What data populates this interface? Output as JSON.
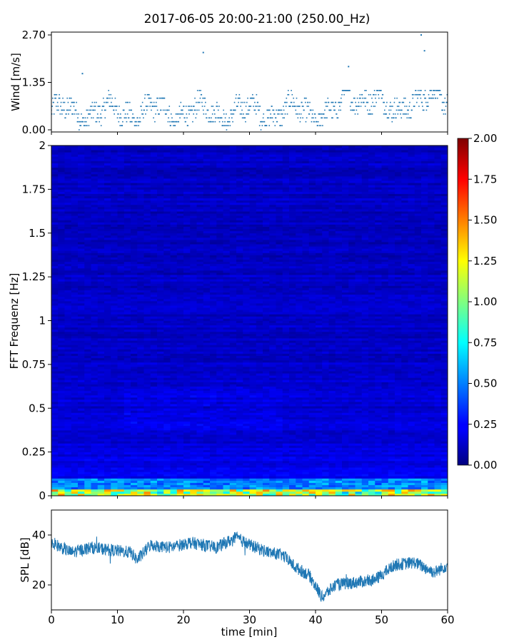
{
  "chart_data": [
    {
      "type": "scatter",
      "title": "2017-06-05 20:00-21:00 (250.00_Hz)",
      "ylabel": "Wind [m/s]",
      "xlim": [
        0,
        60
      ],
      "ylim": [
        0,
        2.7
      ],
      "yticks": [
        "0.00",
        "1.35",
        "2.70"
      ],
      "color": "#1f77b4",
      "peaks": [
        {
          "x": 4.7,
          "y": 1.6
        },
        {
          "x": 23.0,
          "y": 2.2
        },
        {
          "x": 45.0,
          "y": 1.8
        },
        {
          "x": 56.0,
          "y": 2.7
        },
        {
          "x": 56.5,
          "y": 2.25
        }
      ]
    },
    {
      "type": "heatmap",
      "ylabel": "FFT Frequenz [Hz]",
      "xlim": [
        0,
        60
      ],
      "ylim": [
        0,
        2
      ],
      "yticks": [
        "0",
        "0.25",
        "0.5",
        "0.75",
        "1",
        "1.25",
        "1.5",
        "1.75",
        "2"
      ],
      "colorbar": {
        "min": 0,
        "max": 2,
        "colormap": "jet",
        "ticks": [
          "0.00",
          "0.25",
          "0.50",
          "0.75",
          "1.00",
          "1.25",
          "1.50",
          "1.75",
          "2.00"
        ]
      }
    },
    {
      "type": "line",
      "xlabel": "time [min]",
      "ylabel": "SPL [dB]",
      "xlim": [
        0,
        60
      ],
      "ylim": [
        10,
        50
      ],
      "xticks": [
        "0",
        "10",
        "20",
        "30",
        "40",
        "50",
        "60"
      ],
      "yticks": [
        "20",
        "40"
      ],
      "color": "#1f77b4",
      "trend": [
        {
          "x": 0,
          "y": 37
        },
        {
          "x": 3,
          "y": 33
        },
        {
          "x": 6,
          "y": 35
        },
        {
          "x": 9,
          "y": 34
        },
        {
          "x": 12,
          "y": 33
        },
        {
          "x": 13,
          "y": 30
        },
        {
          "x": 15,
          "y": 36
        },
        {
          "x": 18,
          "y": 35
        },
        {
          "x": 21,
          "y": 37
        },
        {
          "x": 25,
          "y": 35
        },
        {
          "x": 28,
          "y": 39
        },
        {
          "x": 30,
          "y": 36
        },
        {
          "x": 33,
          "y": 33
        },
        {
          "x": 35,
          "y": 32
        },
        {
          "x": 37,
          "y": 27
        },
        {
          "x": 39,
          "y": 24
        },
        {
          "x": 41,
          "y": 15
        },
        {
          "x": 43,
          "y": 20
        },
        {
          "x": 46,
          "y": 21
        },
        {
          "x": 49,
          "y": 22
        },
        {
          "x": 52,
          "y": 28
        },
        {
          "x": 55,
          "y": 29
        },
        {
          "x": 58,
          "y": 25
        },
        {
          "x": 60,
          "y": 28
        }
      ]
    }
  ]
}
